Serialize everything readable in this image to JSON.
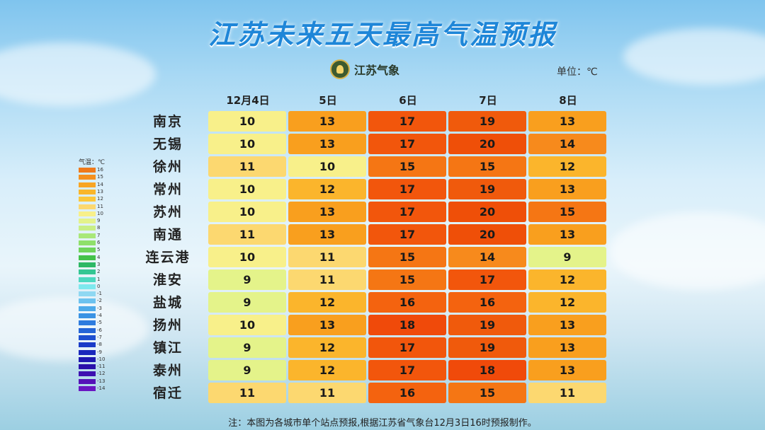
{
  "title": "江苏未来五天最高气温预报",
  "logo_text": "江苏气象",
  "unit": "单位：℃",
  "chart_data": {
    "type": "table",
    "columns": [
      "12月4日",
      "5日",
      "6日",
      "7日",
      "8日"
    ],
    "rows": [
      {
        "city": "南京",
        "values": [
          10,
          13,
          17,
          19,
          13
        ]
      },
      {
        "city": "无锡",
        "values": [
          10,
          13,
          17,
          20,
          14
        ]
      },
      {
        "city": "徐州",
        "values": [
          11,
          10,
          15,
          15,
          12
        ]
      },
      {
        "city": "常州",
        "values": [
          10,
          12,
          17,
          19,
          13
        ]
      },
      {
        "city": "苏州",
        "values": [
          10,
          13,
          17,
          20,
          15
        ]
      },
      {
        "city": "南通",
        "values": [
          11,
          13,
          17,
          20,
          13
        ]
      },
      {
        "city": "连云港",
        "values": [
          10,
          11,
          15,
          14,
          9
        ]
      },
      {
        "city": "淮安",
        "values": [
          9,
          11,
          15,
          17,
          12
        ]
      },
      {
        "city": "盐城",
        "values": [
          9,
          12,
          16,
          16,
          12
        ]
      },
      {
        "city": "扬州",
        "values": [
          10,
          13,
          18,
          19,
          13
        ]
      },
      {
        "city": "镇江",
        "values": [
          9,
          12,
          17,
          19,
          13
        ]
      },
      {
        "city": "泰州",
        "values": [
          9,
          12,
          17,
          18,
          13
        ]
      },
      {
        "city": "宿迁",
        "values": [
          11,
          11,
          16,
          15,
          11
        ]
      }
    ],
    "legend": {
      "title": "气温：℃",
      "levels": [
        {
          "value": "16",
          "color": "#f07a1a"
        },
        {
          "value": "15",
          "color": "#f5901e"
        },
        {
          "value": "14",
          "color": "#f8a523"
        },
        {
          "value": "13",
          "color": "#f9b62a"
        },
        {
          "value": "12",
          "color": "#fbc73b"
        },
        {
          "value": "11",
          "color": "#fcd870"
        },
        {
          "value": "10",
          "color": "#f8f08a"
        },
        {
          "value": "9",
          "color": "#e4f38a"
        },
        {
          "value": "8",
          "color": "#c8ef86"
        },
        {
          "value": "7",
          "color": "#a9e879"
        },
        {
          "value": "6",
          "color": "#8fe06a"
        },
        {
          "value": "5",
          "color": "#6fd45a"
        },
        {
          "value": "4",
          "color": "#43c24a"
        },
        {
          "value": "3",
          "color": "#2db865"
        },
        {
          "value": "2",
          "color": "#34c693"
        },
        {
          "value": "1",
          "color": "#4dd8c0"
        },
        {
          "value": "0",
          "color": "#7ee8ee"
        },
        {
          "value": "-1",
          "color": "#8fd8f2"
        },
        {
          "value": "-2",
          "color": "#6cc2ef"
        },
        {
          "value": "-3",
          "color": "#4daaea"
        },
        {
          "value": "-4",
          "color": "#3a93e4"
        },
        {
          "value": "-5",
          "color": "#2e7cde"
        },
        {
          "value": "-6",
          "color": "#2465d7"
        },
        {
          "value": "-7",
          "color": "#1d4fd0"
        },
        {
          "value": "-8",
          "color": "#1a3bc8"
        },
        {
          "value": "-9",
          "color": "#1a28bc"
        },
        {
          "value": "-10",
          "color": "#1e18b0"
        },
        {
          "value": "-11",
          "color": "#2a10aa"
        },
        {
          "value": "-12",
          "color": "#3d0fb0"
        },
        {
          "value": "-13",
          "color": "#5512b8"
        },
        {
          "value": "-14",
          "color": "#6a16c2"
        }
      ]
    },
    "color_scale": {
      "9": "#e4f38a",
      "10": "#f8f08a",
      "11": "#fcd870",
      "12": "#fbb52c",
      "13": "#f99f1e",
      "14": "#f78a1c",
      "15": "#f57614",
      "16": "#f4630f",
      "17": "#f2560c",
      "18": "#f04a0a",
      "19": "#f05a0c",
      "20": "#ef4f08"
    }
  },
  "note": "注：本图为各城市单个站点预报,根据江苏省气象台12月3日16时预报制作。"
}
